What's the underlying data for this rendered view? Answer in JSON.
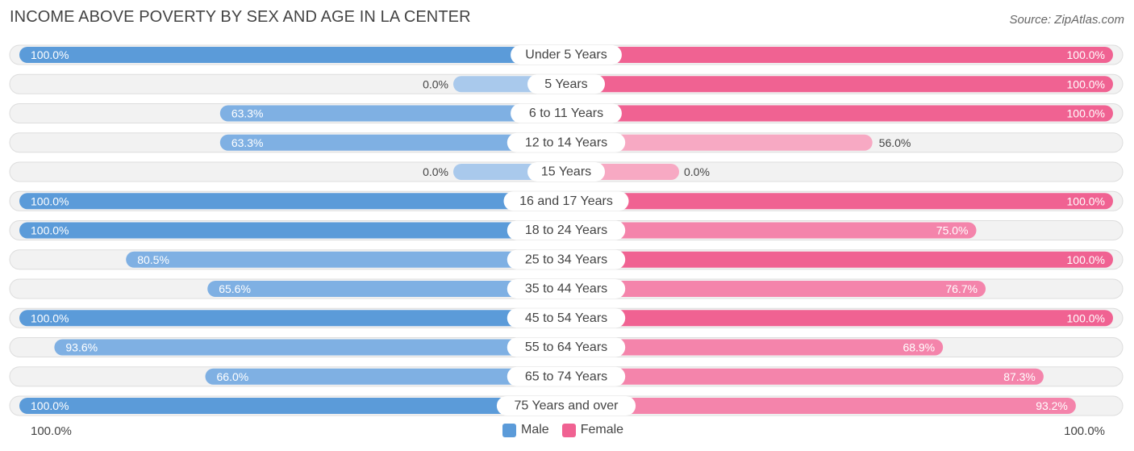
{
  "title": "INCOME ABOVE POVERTY BY SEX AND AGE IN LA CENTER",
  "source": "Source: ZipAtlas.com",
  "axis": {
    "left_label": "100.0%",
    "right_label": "100.0%"
  },
  "legend": {
    "male": "Male",
    "female": "Female"
  },
  "colors": {
    "male_strong": "#5b9bd9",
    "male_light": "#a9c9ec",
    "female_strong": "#f06292",
    "female_light": "#f7a9c3",
    "row_bg": "#f2f2f2",
    "row_border": "#dddddd"
  },
  "chart_data": {
    "type": "bar",
    "orientation": "horizontal-diverging",
    "title": "INCOME ABOVE POVERTY BY SEX AND AGE IN LA CENTER",
    "xlim": [
      -100,
      100
    ],
    "categories": [
      "Under 5 Years",
      "5 Years",
      "6 to 11 Years",
      "12 to 14 Years",
      "15 Years",
      "16 and 17 Years",
      "18 to 24 Years",
      "25 to 34 Years",
      "35 to 44 Years",
      "45 to 54 Years",
      "55 to 64 Years",
      "65 to 74 Years",
      "75 Years and over"
    ],
    "series": [
      {
        "name": "Male",
        "values": [
          100.0,
          0.0,
          63.3,
          63.3,
          0.0,
          100.0,
          100.0,
          80.5,
          65.6,
          100.0,
          93.6,
          66.0,
          100.0
        ],
        "labels": [
          "100.0%",
          "0.0%",
          "63.3%",
          "63.3%",
          "0.0%",
          "100.0%",
          "100.0%",
          "80.5%",
          "65.6%",
          "100.0%",
          "93.6%",
          "66.0%",
          "100.0%"
        ]
      },
      {
        "name": "Female",
        "values": [
          100.0,
          100.0,
          100.0,
          56.0,
          0.0,
          100.0,
          75.0,
          100.0,
          76.7,
          100.0,
          68.9,
          87.3,
          93.2
        ],
        "labels": [
          "100.0%",
          "100.0%",
          "100.0%",
          "56.0%",
          "0.0%",
          "100.0%",
          "75.0%",
          "100.0%",
          "76.7%",
          "100.0%",
          "68.9%",
          "87.3%",
          "93.2%"
        ]
      }
    ],
    "legend_position": "bottom-center"
  }
}
